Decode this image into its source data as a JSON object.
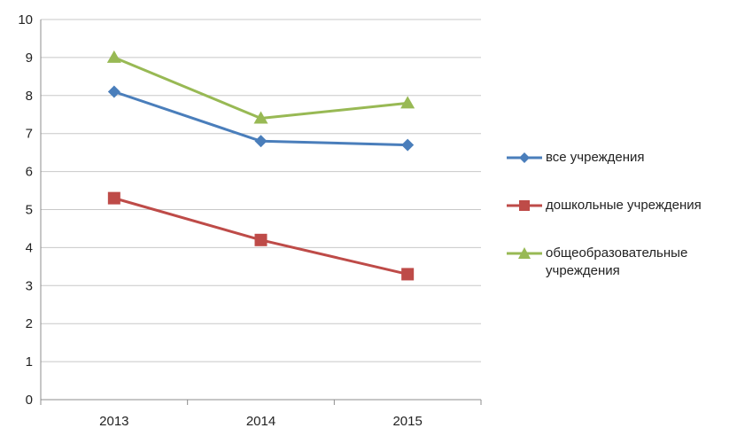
{
  "chart_data": {
    "type": "line",
    "categories": [
      "2013",
      "2014",
      "2015"
    ],
    "series": [
      {
        "name": "все учреждения",
        "values": [
          8.1,
          6.8,
          6.7
        ],
        "color": "#4a7ebb",
        "marker": "diamond"
      },
      {
        "name": "дошкольные учреждения",
        "values": [
          5.3,
          4.2,
          3.3
        ],
        "color": "#be4b48",
        "marker": "square"
      },
      {
        "name": "общеобразовательные учреждения",
        "values": [
          9.0,
          7.4,
          7.8
        ],
        "color": "#98b954",
        "marker": "triangle"
      }
    ],
    "yticks": [
      "0",
      "1",
      "2",
      "3",
      "4",
      "5",
      "6",
      "7",
      "8",
      "9",
      "10"
    ],
    "ylim": [
      0,
      10
    ],
    "grid": true,
    "legend_position": "right"
  }
}
